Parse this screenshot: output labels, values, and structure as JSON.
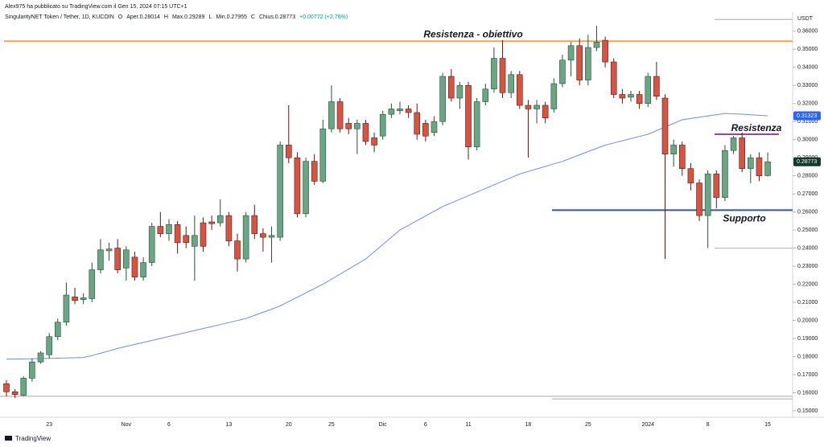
{
  "header": {
    "author_line": "Alex975 ha pubblicato su TradingView.com il Gen 15, 2024 07:15 UTC+1",
    "info": [
      "SingularityNET Token / Tether, 1D, KUCOIN",
      "O",
      "Aper.0.28014",
      "H",
      "Max.0.29289",
      "L",
      "Min.0.27955",
      "C",
      "Chius.0.28773",
      "+0.00772 (+2.76%)"
    ],
    "logo": "TradingView"
  },
  "chart_data": {
    "type": "candlestick",
    "currency": "USDT",
    "categories": [
      null,
      null,
      null,
      null,
      null,
      "23",
      null,
      null,
      null,
      null,
      null,
      null,
      null,
      null,
      "Nov",
      null,
      null,
      null,
      null,
      "6",
      null,
      null,
      null,
      null,
      null,
      null,
      "13",
      null,
      null,
      null,
      null,
      null,
      null,
      "20",
      null,
      null,
      null,
      null,
      "25",
      null,
      null,
      null,
      null,
      null,
      "Dic",
      null,
      null,
      null,
      null,
      "6",
      null,
      null,
      null,
      null,
      "11",
      null,
      null,
      null,
      null,
      null,
      null,
      "18",
      null,
      null,
      null,
      null,
      null,
      null,
      "25",
      null,
      null,
      null,
      null,
      null,
      null,
      "2024",
      null,
      null,
      null,
      null,
      null,
      null,
      "8",
      null,
      null,
      null,
      null,
      null,
      null,
      "15"
    ],
    "open": [
      0.165,
      0.1605,
      0.1585,
      0.168,
      0.177,
      0.181,
      0.191,
      0.199,
      0.213,
      0.2115,
      0.212,
      0.228,
      0.2385,
      0.24,
      0.229,
      0.235,
      0.224,
      0.232,
      0.252,
      0.248,
      0.253,
      0.247,
      0.241,
      0.254,
      0.2545,
      0.254,
      0.258,
      0.244,
      0.234,
      0.258,
      0.248,
      0.246,
      0.246,
      0.297,
      0.29,
      0.259,
      0.288,
      0.277,
      0.306,
      0.321,
      0.309,
      0.306,
      0.309,
      0.301,
      0.302,
      0.314,
      0.316,
      0.317,
      0.315,
      0.309,
      0.304,
      0.31,
      0.335,
      0.323,
      0.33,
      0.296,
      0.321,
      0.328,
      0.345,
      0.326,
      0.336,
      0.319,
      0.317,
      0.319,
      0.317,
      0.331,
      0.344,
      0.352,
      0.333,
      0.351,
      0.355,
      0.343,
      0.325,
      0.3235,
      0.325,
      0.32,
      0.335,
      0.323,
      0.292,
      0.297,
      0.284,
      0.276,
      0.258,
      0.281,
      0.268,
      0.294,
      0.301,
      0.284,
      0.29,
      0.28014
    ],
    "high": [
      0.167,
      0.162,
      0.169,
      0.179,
      0.183,
      0.193,
      0.201,
      0.221,
      0.218,
      0.215,
      0.232,
      0.245,
      0.243,
      0.245,
      0.241,
      0.238,
      0.235,
      0.254,
      0.26,
      0.256,
      0.255,
      0.252,
      0.258,
      0.257,
      0.258,
      0.267,
      0.26,
      0.248,
      0.26,
      0.264,
      0.251,
      0.252,
      0.299,
      0.319,
      0.293,
      0.29,
      0.292,
      0.311,
      0.33,
      0.323,
      0.312,
      0.311,
      0.311,
      0.304,
      0.316,
      0.32,
      0.321,
      0.319,
      0.32,
      0.311,
      0.313,
      0.337,
      0.339,
      0.332,
      0.332,
      0.323,
      0.331,
      0.351,
      0.355,
      0.338,
      0.338,
      0.322,
      0.322,
      0.321,
      0.334,
      0.347,
      0.354,
      0.356,
      0.358,
      0.363,
      0.357,
      0.345,
      0.328,
      0.327,
      0.327,
      0.337,
      0.343,
      0.325,
      0.3,
      0.299,
      0.287,
      0.278,
      0.283,
      0.283,
      0.297,
      0.302,
      0.304,
      0.292,
      0.293,
      0.29289
    ],
    "low": [
      0.158,
      0.157,
      0.158,
      0.166,
      0.176,
      0.179,
      0.189,
      0.197,
      0.209,
      0.209,
      0.21,
      0.226,
      0.233,
      0.226,
      0.222,
      0.222,
      0.222,
      0.23,
      0.246,
      0.244,
      0.237,
      0.24,
      0.222,
      0.238,
      0.25,
      0.252,
      0.241,
      0.227,
      0.232,
      0.245,
      0.238,
      0.232,
      0.244,
      0.287,
      0.257,
      0.257,
      0.275,
      0.276,
      0.304,
      0.304,
      0.303,
      0.292,
      0.297,
      0.293,
      0.3,
      0.312,
      0.314,
      0.312,
      0.3,
      0.299,
      0.302,
      0.308,
      0.321,
      0.317,
      0.289,
      0.294,
      0.319,
      0.326,
      0.323,
      0.323,
      0.317,
      0.29,
      0.309,
      0.309,
      0.315,
      0.329,
      0.335,
      0.33,
      0.33,
      0.349,
      0.34,
      0.323,
      0.32,
      0.321,
      0.317,
      0.318,
      0.322,
      0.234,
      0.285,
      0.28,
      0.272,
      0.255,
      0.24,
      0.262,
      0.266,
      0.292,
      0.282,
      0.276,
      0.277,
      0.27955
    ],
    "close": [
      0.1605,
      0.159,
      0.168,
      0.177,
      0.182,
      0.191,
      0.199,
      0.214,
      0.211,
      0.2125,
      0.228,
      0.239,
      0.2395,
      0.228,
      0.239,
      0.224,
      0.232,
      0.252,
      0.248,
      0.253,
      0.243,
      0.243,
      0.247,
      0.241,
      0.2535,
      0.258,
      0.244,
      0.234,
      0.258,
      0.248,
      0.246,
      0.247,
      0.297,
      0.29,
      0.259,
      0.288,
      0.277,
      0.306,
      0.321,
      0.306,
      0.306,
      0.309,
      0.299,
      0.297,
      0.314,
      0.317,
      0.317,
      0.315,
      0.303,
      0.302,
      0.31,
      0.335,
      0.323,
      0.33,
      0.296,
      0.321,
      0.328,
      0.345,
      0.326,
      0.336,
      0.319,
      0.317,
      0.319,
      0.312,
      0.331,
      0.344,
      0.352,
      0.333,
      0.351,
      0.354,
      0.343,
      0.325,
      0.323,
      0.325,
      0.32,
      0.335,
      0.324,
      0.292,
      0.297,
      0.284,
      0.276,
      0.258,
      0.281,
      0.268,
      0.294,
      0.301,
      0.284,
      0.29,
      0.28,
      0.28773
    ],
    "up_color": "#6ba583",
    "up_border": "#225437",
    "down_color": "#d75442",
    "down_border": "#5b1a13",
    "ma": {
      "color": "#6e8cf5",
      "values": [
        0.1785,
        0.1786,
        0.1787,
        0.1788,
        0.1789,
        0.179,
        0.1791,
        0.1792,
        0.1793,
        0.1795,
        0.1805,
        0.1818,
        0.1831,
        0.1845,
        0.1856,
        0.1867,
        0.1878,
        0.1889,
        0.19,
        0.1911,
        0.1922,
        0.1933,
        0.1944,
        0.1955,
        0.1966,
        0.1977,
        0.1988,
        0.1999,
        0.201,
        0.2027,
        0.2045,
        0.2062,
        0.208,
        0.2104,
        0.2128,
        0.2152,
        0.2176,
        0.22,
        0.2228,
        0.2256,
        0.2284,
        0.2312,
        0.234,
        0.238,
        0.242,
        0.246,
        0.25,
        0.2526,
        0.2552,
        0.2578,
        0.2604,
        0.263,
        0.265,
        0.267,
        0.269,
        0.271,
        0.273,
        0.275,
        0.277,
        0.279,
        0.281,
        0.2824,
        0.2838,
        0.2852,
        0.2866,
        0.288,
        0.2898,
        0.2916,
        0.2934,
        0.2952,
        0.297,
        0.2982,
        0.2994,
        0.3006,
        0.3018,
        0.303,
        0.305,
        0.307,
        0.309,
        0.311,
        0.3117,
        0.3124,
        0.3131,
        0.3138,
        0.3145,
        0.3143,
        0.3141,
        0.3138,
        0.3135,
        0.31323
      ]
    },
    "ylim": [
      0.1464,
      0.3706
    ],
    "yticks": [
      {
        "value": 0.15,
        "label": "0.15000"
      },
      {
        "value": 0.16,
        "label": "0.16000"
      },
      {
        "value": 0.17,
        "label": "0.17000"
      },
      {
        "value": 0.18,
        "label": "0.18000"
      },
      {
        "value": 0.19,
        "label": "0.19000"
      },
      {
        "value": 0.2,
        "label": "0.20000"
      },
      {
        "value": 0.21,
        "label": "0.21000"
      },
      {
        "value": 0.22,
        "label": "0.22000"
      },
      {
        "value": 0.23,
        "label": "0.23000"
      },
      {
        "value": 0.24,
        "label": "0.24000"
      },
      {
        "value": 0.25,
        "label": "0.25000"
      },
      {
        "value": 0.26,
        "label": "0.26000"
      },
      {
        "value": 0.27,
        "label": "0.27000"
      },
      {
        "value": 0.28,
        "label": "0.28000"
      },
      {
        "value": 0.29,
        "label": "0.29000"
      },
      {
        "value": 0.3,
        "label": "0.30000"
      },
      {
        "value": 0.31,
        "label": "0.31000"
      },
      {
        "value": 0.32,
        "label": "0.32000"
      },
      {
        "value": 0.33,
        "label": "0.33000"
      },
      {
        "value": 0.34,
        "label": "0.34000"
      },
      {
        "value": 0.35,
        "label": "0.35000"
      },
      {
        "value": 0.36,
        "label": "0.36000"
      }
    ],
    "grid": false,
    "price_tags": [
      {
        "value": 0.31323,
        "label": "0.31323",
        "color": "#2962ff"
      },
      {
        "value": 0.28773,
        "label": "0.28773",
        "color": "#0f3a2c"
      }
    ],
    "levels": [
      {
        "value": 0.3545,
        "color": "#f7a34b",
        "text": "Resistenza - obiettivo",
        "text_color": "#2bb4d6"
      },
      {
        "value": 0.303,
        "color": "#9c3fb0",
        "text": "Resistenza",
        "text_color": "#9c3fb0"
      },
      {
        "value": 0.261,
        "color": "#2f4fc8",
        "text": "Supporto",
        "text_color": "#2f4fc8"
      },
      {
        "value": 0.3665,
        "color": "#c4c4c4"
      },
      {
        "value": 0.24,
        "color": "#c4c4c4"
      },
      {
        "value": 0.1565,
        "color": "#c4c4c4"
      },
      {
        "value": 0.158,
        "color": "#c4c4c4"
      }
    ]
  }
}
